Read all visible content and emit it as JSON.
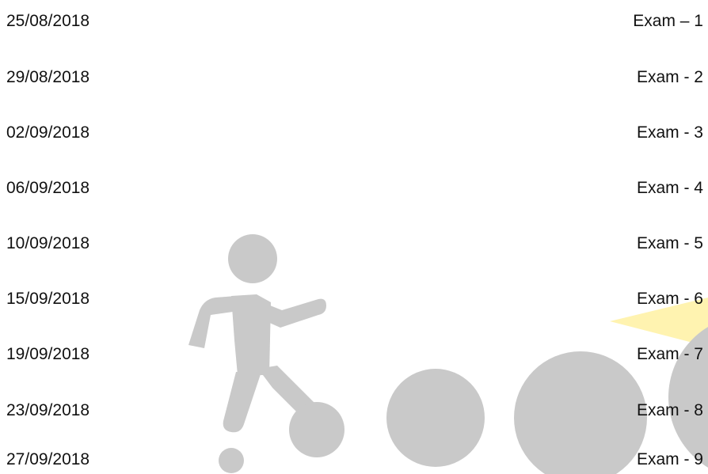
{
  "schedule": {
    "rows": [
      {
        "date": "25/08/2018",
        "exam": "Exam – 1"
      },
      {
        "date": "29/08/2018",
        "exam": "Exam - 2"
      },
      {
        "date": "02/09/2018",
        "exam": "Exam - 3"
      },
      {
        "date": "06/09/2018",
        "exam": "Exam - 4"
      },
      {
        "date": "10/09/2018",
        "exam": "Exam - 5"
      },
      {
        "date": "15/09/2018",
        "exam": "Exam - 6"
      },
      {
        "date": "19/09/2018",
        "exam": "Exam - 7"
      },
      {
        "date": "23/09/2018",
        "exam": "Exam - 8"
      },
      {
        "date": "27/09/2018",
        "exam": "Exam - 9"
      }
    ]
  },
  "decoration": {
    "shape_color": "#c9c9c9",
    "accent_color": "#fff3b0"
  }
}
